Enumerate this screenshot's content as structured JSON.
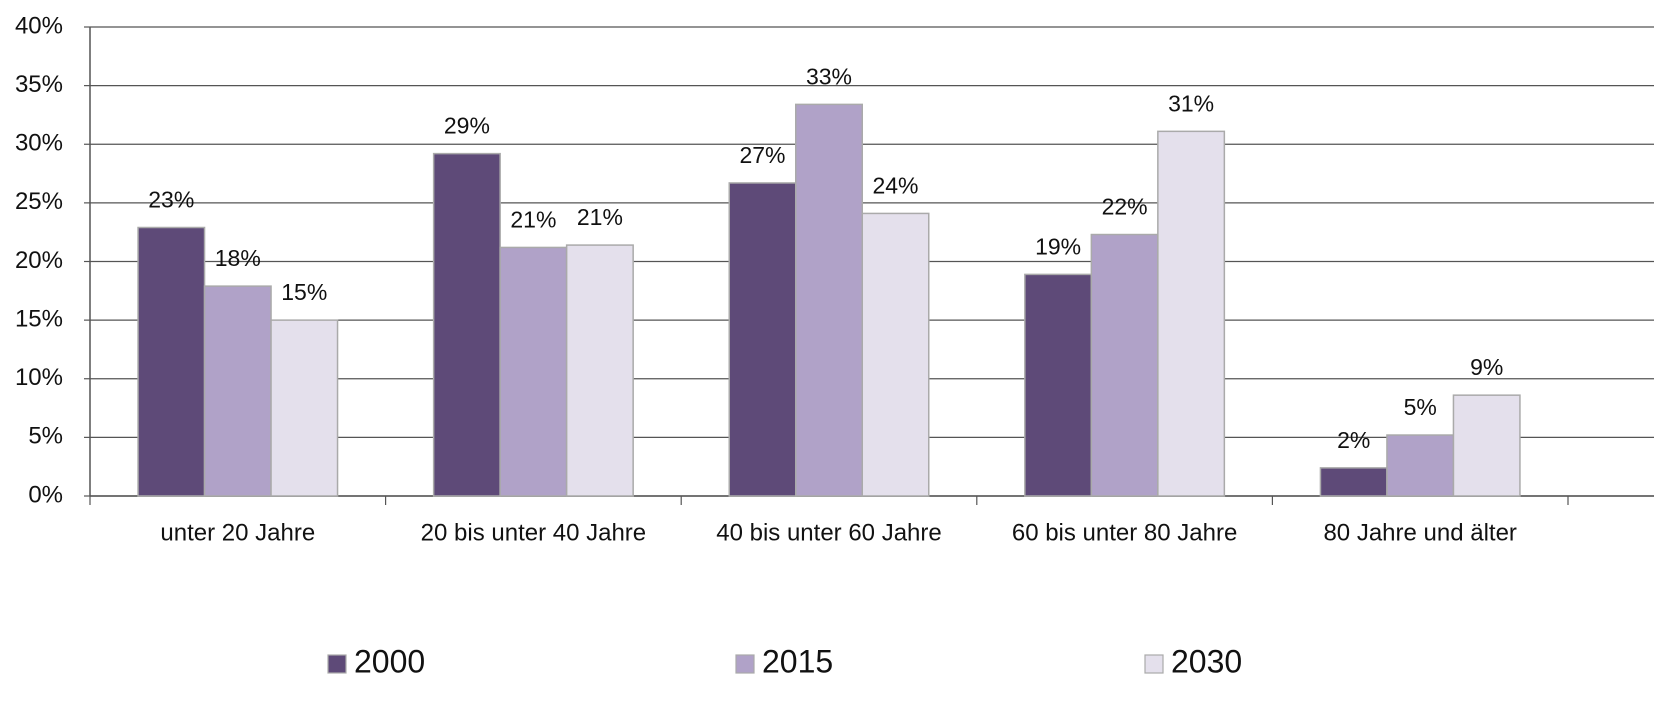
{
  "chart_data": {
    "type": "bar",
    "categories": [
      "unter 20 Jahre",
      "20 bis unter 40 Jahre",
      "40 bis unter 60 Jahre",
      "60 bis unter 80 Jahre",
      "80 Jahre und älter"
    ],
    "series": [
      {
        "name": "2000",
        "color": "#5e4a78",
        "values": [
          22.9,
          29.2,
          26.7,
          18.9,
          2.4
        ],
        "value_labels": [
          "23%",
          "29%",
          "27%",
          "19%",
          "2%"
        ]
      },
      {
        "name": "2015",
        "color": "#b0a2c8",
        "values": [
          17.9,
          21.2,
          33.4,
          22.3,
          5.2
        ],
        "value_labels": [
          "18%",
          "21%",
          "33%",
          "22%",
          "5%"
        ]
      },
      {
        "name": "2030",
        "color": "#e4e0ec",
        "values": [
          15.0,
          21.4,
          24.1,
          31.1,
          8.6
        ],
        "value_labels": [
          "15%",
          "21%",
          "24%",
          "31%",
          "9%"
        ]
      }
    ],
    "ylim": [
      0,
      40
    ],
    "yticks": [
      {
        "value": 0,
        "label": "0%"
      },
      {
        "value": 5,
        "label": "5%"
      },
      {
        "value": 10,
        "label": "10%"
      },
      {
        "value": 15,
        "label": "15%"
      },
      {
        "value": 20,
        "label": "20%"
      },
      {
        "value": 25,
        "label": "25%"
      },
      {
        "value": 30,
        "label": "30%"
      },
      {
        "value": 35,
        "label": "35%"
      },
      {
        "value": 40,
        "label": "40%"
      }
    ],
    "grid": true,
    "legend": "bottom"
  }
}
